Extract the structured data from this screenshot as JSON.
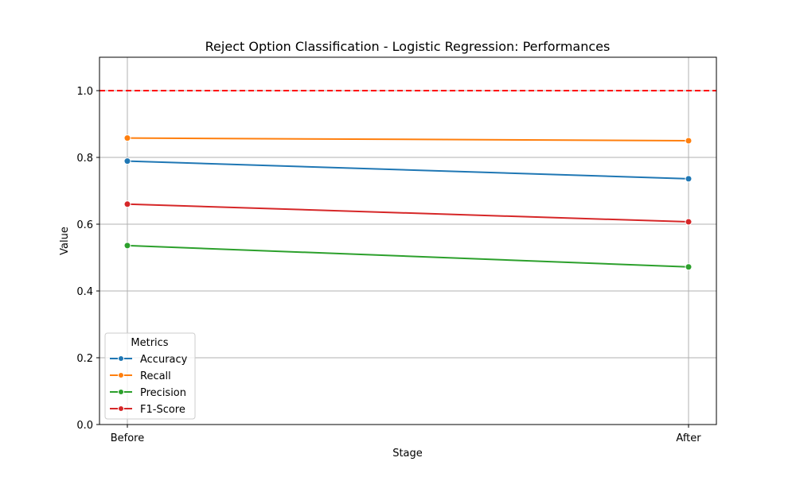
{
  "chart_data": {
    "type": "line",
    "title": "Reject Option Classification - Logistic Regression: Performances",
    "xlabel": "Stage",
    "ylabel": "Value",
    "categories": [
      "Before",
      "After"
    ],
    "ylim": [
      0,
      1.1
    ],
    "yticks": [
      "0.0",
      "0.2",
      "0.4",
      "0.6",
      "0.8",
      "1.0"
    ],
    "grid": true,
    "reference_line": {
      "y": 1.0,
      "color": "#ff0000",
      "style": "dashed"
    },
    "legend": {
      "title": "Metrics",
      "placement": "lower-left"
    },
    "series": [
      {
        "name": "Accuracy",
        "values": [
          0.789,
          0.736
        ],
        "color": "#1f77b4"
      },
      {
        "name": "Recall",
        "values": [
          0.858,
          0.85
        ],
        "color": "#ff7f0e"
      },
      {
        "name": "Precision",
        "values": [
          0.536,
          0.472
        ],
        "color": "#2ca02c"
      },
      {
        "name": "F1-Score",
        "values": [
          0.66,
          0.607
        ],
        "color": "#d62728"
      }
    ]
  }
}
